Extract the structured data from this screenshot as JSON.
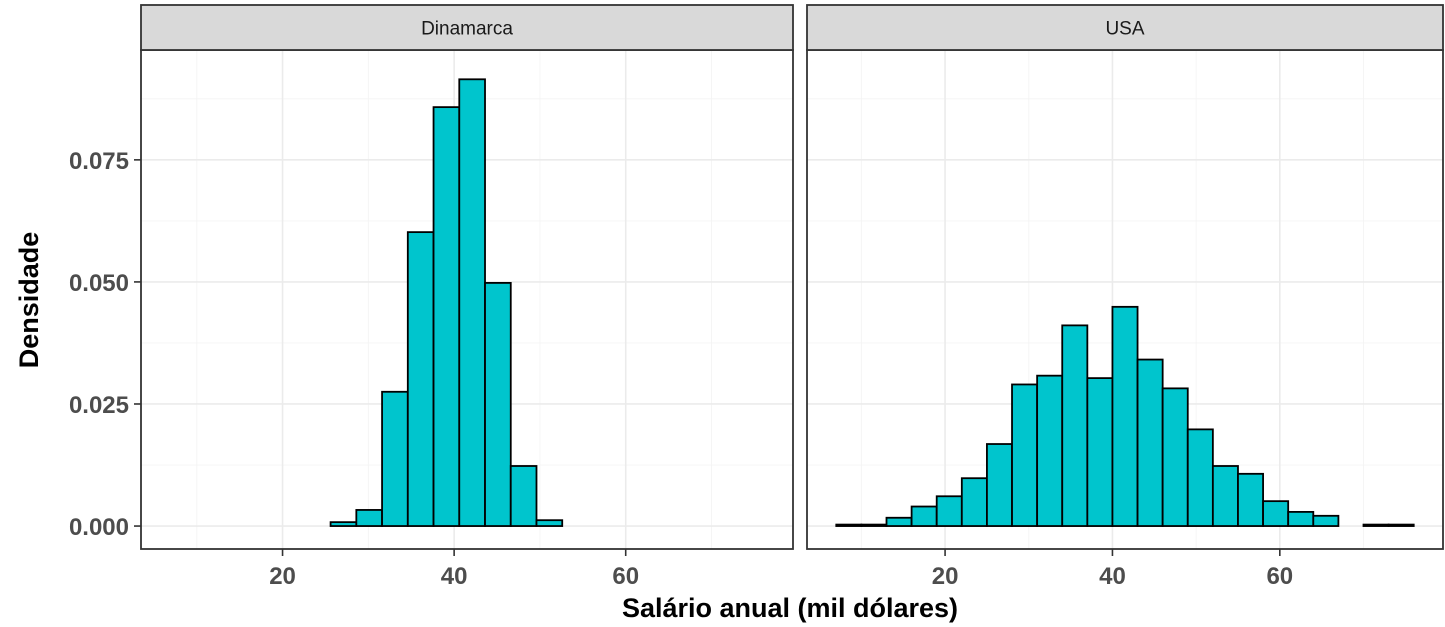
{
  "chart_data": {
    "type": "bar",
    "subtype": "faceted-histogram",
    "xlabel": "Salário anual (mil dólares)",
    "ylabel": "Densidade",
    "x_ticks": [
      20,
      40,
      60
    ],
    "y_ticks": [
      "0.000",
      "0.025",
      "0.050",
      "0.075"
    ],
    "y_tick_values": [
      0,
      0.025,
      0.05,
      0.075
    ],
    "xlim": [
      3.5,
      79.5
    ],
    "ylim": [
      -0.0047,
      0.0975
    ],
    "bin_width": 3.0,
    "fill_color": "#00C5CD",
    "outline_color": "#000000",
    "panel_background": "#ffffff",
    "strip_background": "#d9d9d9",
    "grid": true,
    "facets": [
      {
        "name": "Dinamarca",
        "bin_starts": [
          7.6,
          10.6,
          13.6,
          16.6,
          19.6,
          22.6,
          25.6,
          28.6,
          31.6,
          34.6,
          37.6,
          40.6,
          43.6,
          46.6,
          49.6,
          52.6,
          55.6,
          58.6,
          61.6,
          64.6,
          67.6,
          70.6,
          73.6
        ],
        "values": [
          0,
          0,
          0,
          0,
          0,
          0,
          0.0008,
          0.0033,
          0.0275,
          0.0602,
          0.0858,
          0.0915,
          0.0498,
          0.0123,
          0.0012,
          0,
          0,
          0,
          0,
          0,
          0,
          0,
          0
        ]
      },
      {
        "name": "USA",
        "bin_starts": [
          7.0,
          10.0,
          13.0,
          16.0,
          19.0,
          22.0,
          25.0,
          28.0,
          31.0,
          34.0,
          37.0,
          40.0,
          43.0,
          46.0,
          49.0,
          52.0,
          55.0,
          58.0,
          61.0,
          64.0,
          67.0,
          70.0,
          73.0
        ],
        "values": [
          0.0003,
          0.0003,
          0.0017,
          0.004,
          0.0061,
          0.0098,
          0.0168,
          0.029,
          0.0308,
          0.0411,
          0.0303,
          0.0449,
          0.0341,
          0.0282,
          0.0198,
          0.0123,
          0.0107,
          0.0051,
          0.0029,
          0.0021,
          0,
          0.0003,
          0.0003
        ]
      }
    ]
  }
}
